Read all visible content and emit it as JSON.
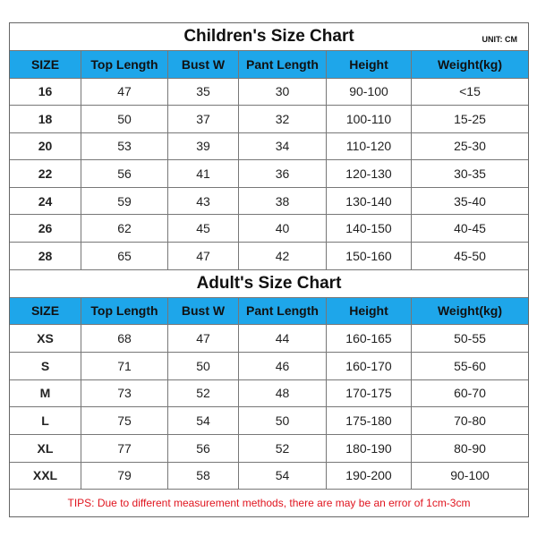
{
  "children": {
    "title": "Children's Size Chart",
    "unit": "UNIT: CM",
    "header": [
      "SIZE",
      "Top Length",
      "Bust W",
      "Pant Length",
      "Height",
      "Weight(kg)"
    ],
    "rows": [
      [
        "16",
        "47",
        "35",
        "30",
        "90-100",
        "<15"
      ],
      [
        "18",
        "50",
        "37",
        "32",
        "100-110",
        "15-25"
      ],
      [
        "20",
        "53",
        "39",
        "34",
        "110-120",
        "25-30"
      ],
      [
        "22",
        "56",
        "41",
        "36",
        "120-130",
        "30-35"
      ],
      [
        "24",
        "59",
        "43",
        "38",
        "130-140",
        "35-40"
      ],
      [
        "26",
        "62",
        "45",
        "40",
        "140-150",
        "40-45"
      ],
      [
        "28",
        "65",
        "47",
        "42",
        "150-160",
        "45-50"
      ]
    ]
  },
  "adult": {
    "title": "Adult's Size Chart",
    "header": [
      "SIZE",
      "Top Length",
      "Bust W",
      "Pant Length",
      "Height",
      "Weight(kg)"
    ],
    "rows": [
      [
        "XS",
        "68",
        "47",
        "44",
        "160-165",
        "50-55"
      ],
      [
        "S",
        "71",
        "50",
        "46",
        "160-170",
        "55-60"
      ],
      [
        "M",
        "73",
        "52",
        "48",
        "170-175",
        "60-70"
      ],
      [
        "L",
        "75",
        "54",
        "50",
        "175-180",
        "70-80"
      ],
      [
        "XL",
        "77",
        "56",
        "52",
        "180-190",
        "80-90"
      ],
      [
        "XXL",
        "79",
        "58",
        "54",
        "190-200",
        "90-100"
      ]
    ]
  },
  "tips": "TIPS: Due to different measurement methods, there are may be an error of 1cm-3cm"
}
